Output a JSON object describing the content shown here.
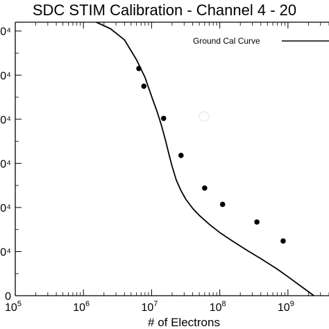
{
  "chart_data": {
    "type": "scatter",
    "title": "SDC STIM Calibration - Channel 4 - 20",
    "xlabel": "# of Electrons",
    "ylabel": "",
    "x_scale": "log",
    "xlim": [
      100000,
      4000000000
    ],
    "ylim": [
      0,
      6.2
    ],
    "x_ticks": [
      {
        "value": 100000,
        "base": "10",
        "exp": "5"
      },
      {
        "value": 1000000,
        "base": "10",
        "exp": "6"
      },
      {
        "value": 10000000,
        "base": "10",
        "exp": "7"
      },
      {
        "value": 100000000,
        "base": "10",
        "exp": "8"
      },
      {
        "value": 1000000000,
        "base": "10",
        "exp": "9"
      }
    ],
    "y_ticks": [
      {
        "value": 0,
        "label": "0"
      },
      {
        "value": 1,
        "label": "0⁴"
      },
      {
        "value": 2,
        "label": "0⁴"
      },
      {
        "value": 3,
        "label": "0⁴"
      },
      {
        "value": 4,
        "label": "0⁴"
      },
      {
        "value": 5,
        "label": "0⁴"
      },
      {
        "value": 6,
        "label": "0⁴"
      }
    ],
    "legend": {
      "position": "top-right",
      "entries": [
        {
          "label": "Ground Cal Curve",
          "style": "line"
        }
      ]
    },
    "grid": false,
    "series": [
      {
        "type": "line",
        "color": "#000000",
        "x": [
          400000,
          800000,
          1500000,
          2500000,
          4000000,
          6000000,
          8000000,
          10000000,
          12000000,
          14000000,
          16000000,
          18000000,
          20000000,
          23000000,
          27000000,
          32000000,
          40000000,
          50000000,
          70000000,
          100000000,
          150000000,
          250000000,
          400000000,
          700000000,
          1000000000,
          1500000000,
          2500000000,
          4000000000
        ],
        "y": [
          6.4,
          6.33,
          6.21,
          6.05,
          5.8,
          5.35,
          4.95,
          4.52,
          4.18,
          3.85,
          3.52,
          3.2,
          2.93,
          2.62,
          2.38,
          2.18,
          1.98,
          1.82,
          1.62,
          1.43,
          1.25,
          1.03,
          0.84,
          0.6,
          0.43,
          0.23,
          -0.02,
          -0.3
        ]
      },
      {
        "type": "scatter",
        "color": "#000000",
        "x": [
          6500000,
          7700000,
          15000000,
          27000000,
          60000000,
          110000000,
          350000000,
          850000000
        ],
        "y": [
          5.15,
          4.75,
          4.02,
          3.18,
          2.44,
          2.07,
          1.67,
          1.24
        ]
      }
    ]
  }
}
